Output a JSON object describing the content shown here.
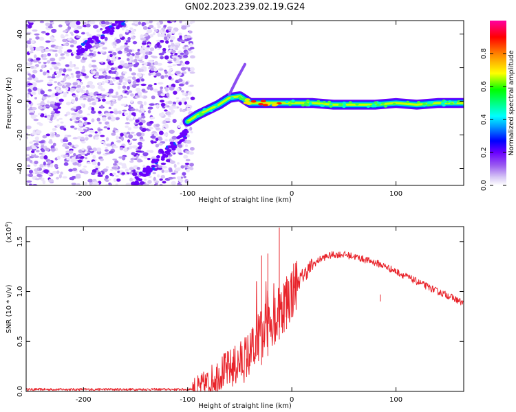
{
  "figure": {
    "title": "GN02.2023.239.02.19.G24"
  },
  "chart_data": [
    {
      "type": "heatmap",
      "xlabel": "Height of straight line (km)",
      "ylabel": "Frequency (Hz)",
      "xlim": [
        -255,
        165
      ],
      "ylim": [
        -50,
        48
      ],
      "xticks": [
        -200,
        -100,
        0,
        100
      ],
      "yticks": [
        -40,
        -20,
        0,
        20,
        40
      ],
      "colorbar": {
        "label": "Normalized spectral amplitude",
        "range": [
          0.0,
          1.0
        ],
        "ticks": [
          "0.0",
          "0.2",
          "0.4",
          "0.6",
          "0.8"
        ],
        "colormap": [
          "#ffffff",
          "#d6c6f5",
          "#9b5cf0",
          "#6a00ff",
          "#0000ff",
          "#00a0ff",
          "#00ffff",
          "#00ff80",
          "#00ff00",
          "#ffff00",
          "#ff8000",
          "#ff0000",
          "#ff00a0"
        ]
      },
      "ridge": {
        "x": [
          -100,
          -90,
          -80,
          -70,
          -60,
          -50,
          -40,
          -30,
          -20,
          -10,
          0,
          20,
          40,
          60,
          80,
          100,
          120,
          140,
          165
        ],
        "y": [
          -12,
          -8,
          -5,
          -2,
          2,
          3,
          -1,
          -1,
          -1,
          -1,
          -1,
          -1,
          -2,
          -2,
          -2,
          -1,
          -2,
          -1,
          -1
        ]
      },
      "grid": false,
      "legend": "none"
    },
    {
      "type": "line",
      "xlabel": "Height of straight line (km)",
      "ylabel": "SNR (10 * v/v)",
      "multiplier": "(x10",
      "multiplier_exp": "4",
      "multiplier_close": ")",
      "xlim": [
        -255,
        165
      ],
      "ylim": [
        0,
        1.65
      ],
      "xticks": [
        -200,
        -100,
        0,
        100
      ],
      "yticks": [
        0.0,
        0.5,
        1.0,
        1.5
      ],
      "ytick_labels": [
        "0.0",
        "0.5",
        "1.0",
        "1.5"
      ],
      "series": [
        {
          "color": "#e8232a",
          "x": [
            -255,
            -200,
            -150,
            -100,
            -90,
            -80,
            -70,
            -60,
            -50,
            -40,
            -30,
            -20,
            -10,
            0,
            10,
            20,
            30,
            40,
            50,
            60,
            70,
            80,
            90,
            100,
            110,
            120,
            130,
            140,
            150,
            165
          ],
          "y": [
            0.02,
            0.02,
            0.02,
            0.02,
            0.03,
            0.08,
            0.18,
            0.22,
            0.28,
            0.38,
            0.55,
            0.7,
            0.85,
            1.0,
            1.15,
            1.27,
            1.34,
            1.37,
            1.37,
            1.35,
            1.32,
            1.29,
            1.25,
            1.2,
            1.15,
            1.1,
            1.05,
            1.0,
            0.96,
            0.88
          ]
        }
      ],
      "grid": false,
      "legend": "none"
    }
  ]
}
